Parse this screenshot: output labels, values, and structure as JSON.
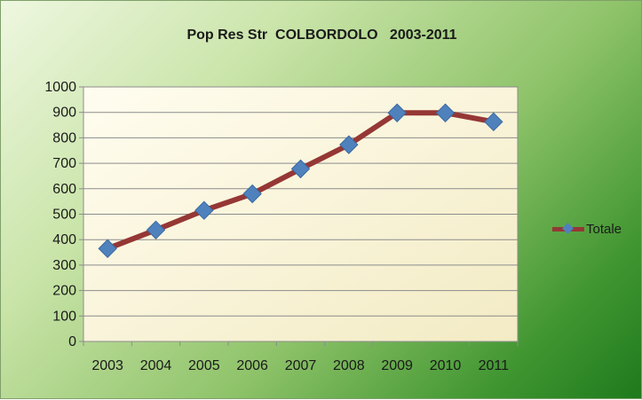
{
  "chart_data": {
    "type": "line",
    "title": "Pop Res Str  COLBORDOLO   2003-2011",
    "xlabel": "",
    "ylabel": "",
    "categories": [
      "2003",
      "2004",
      "2005",
      "2006",
      "2007",
      "2008",
      "2009",
      "2010",
      "2011"
    ],
    "series": [
      {
        "name": "Totale",
        "values": [
          365,
          438,
          515,
          580,
          678,
          773,
          898,
          898,
          863
        ],
        "line_color": "#953735",
        "marker_color": "#4f81bd",
        "marker": "diamond"
      }
    ],
    "ylim": [
      0,
      1000
    ],
    "yticks": [
      "0",
      "100",
      "200",
      "300",
      "400",
      "500",
      "600",
      "700",
      "800",
      "900",
      "1000"
    ],
    "grid": true,
    "legend_position": "right",
    "plot_background": "#fdf8dc",
    "frame_gradient": [
      "#eef7e0",
      "#1f7a1d"
    ]
  }
}
